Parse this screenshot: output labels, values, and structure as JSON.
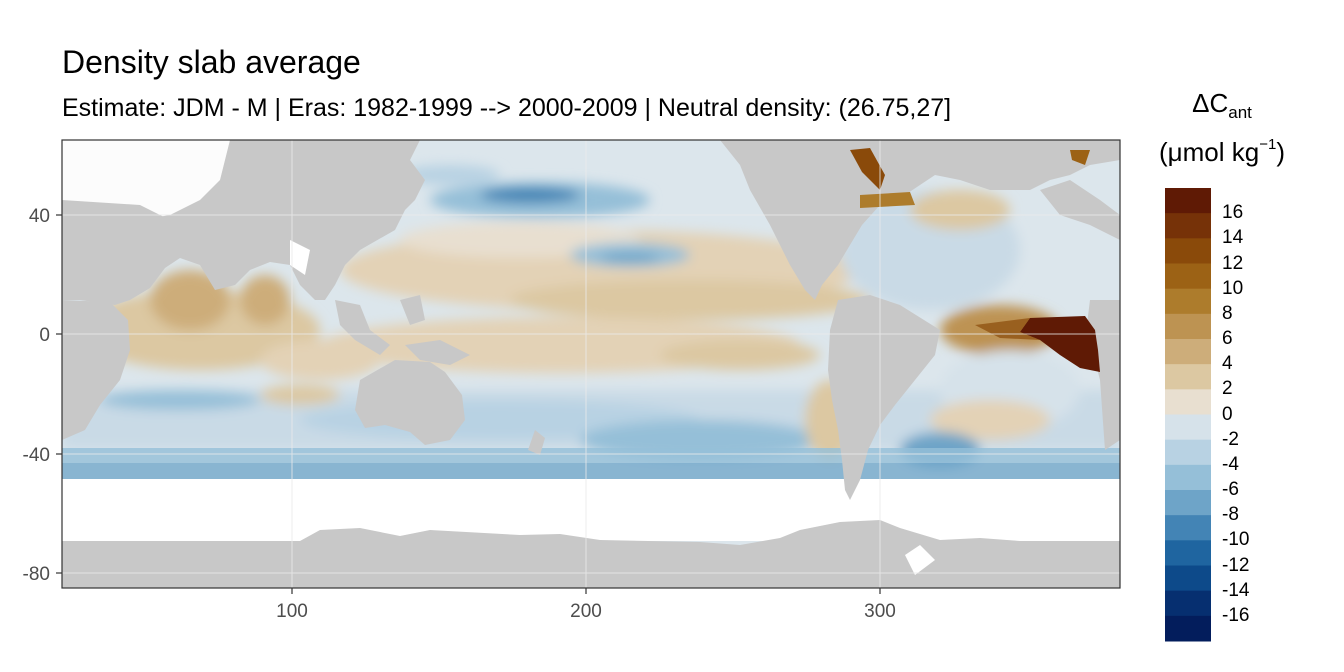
{
  "title": "Density slab average",
  "subtitle": "Estimate: JDM - M | Eras: 1982-1999 --> 2000-2009 | Neutral density: (26.75,27]",
  "legend": {
    "title_delta": "ΔC",
    "title_sub": "ant",
    "unit_prefix": "(μmol kg",
    "unit_sup": "−1",
    "unit_suffix": ")",
    "labels": [
      "16",
      "14",
      "12",
      "10",
      "8",
      "6",
      "4",
      "2",
      "0",
      "-2",
      "-4",
      "-6",
      "-8",
      "-10",
      "-12",
      "-14",
      "-16"
    ],
    "colors": [
      "#5f1a05",
      "#763208",
      "#8a4a0a",
      "#9c6215",
      "#ad7c2c",
      "#bd9352",
      "#cdad7a",
      "#dcc8a2",
      "#e8dfd0",
      "#d6e2ea",
      "#b8d2e3",
      "#95bfd8",
      "#6ea4c8",
      "#4384b5",
      "#1f65a0",
      "#0d4a8a",
      "#062f70",
      "#031d5c"
    ]
  },
  "colors": {
    "land": "#c8c8c8",
    "no_data": "#ffffff",
    "ocean_base": "#dce6ec",
    "grid": "#ebebeb",
    "axis": "#333333"
  },
  "axes": {
    "x_ticks": [
      100,
      200,
      300
    ],
    "y_ticks": [
      40,
      0,
      -40,
      -80
    ],
    "x_range": [
      20,
      380
    ],
    "y_range": [
      -85,
      65
    ]
  }
}
